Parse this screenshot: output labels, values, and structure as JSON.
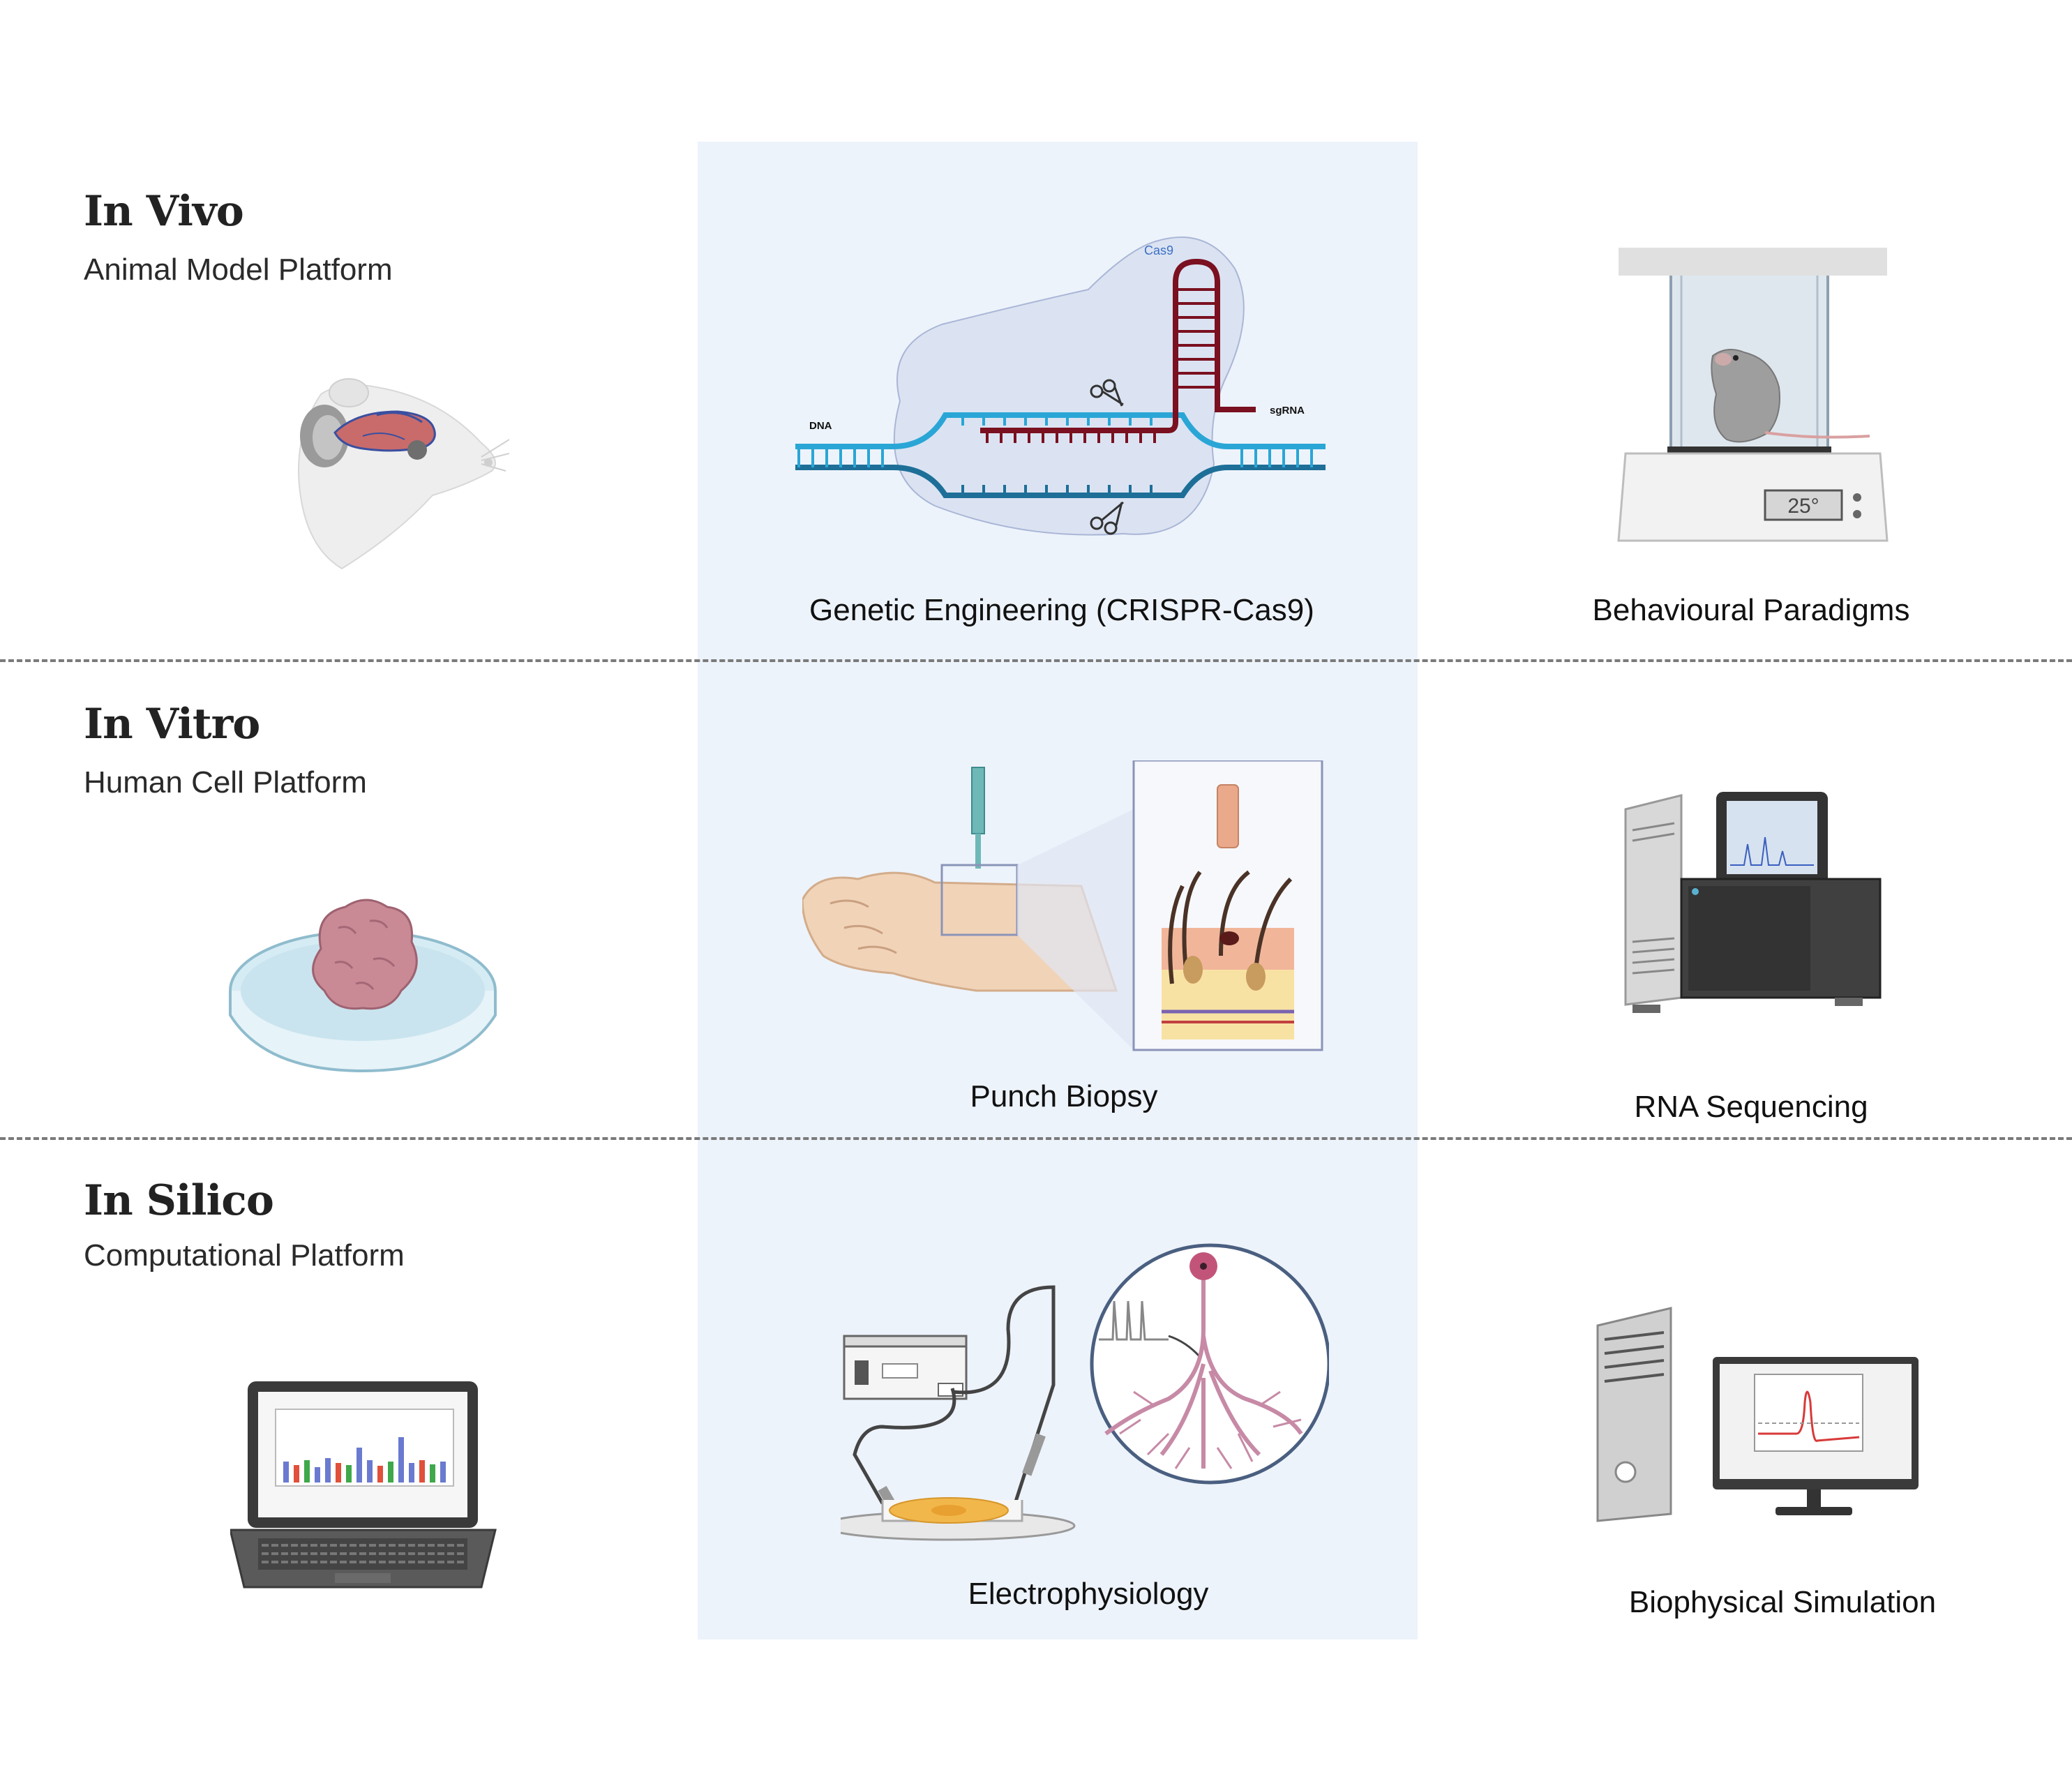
{
  "rows": [
    {
      "title": "In Vivo",
      "subtitle": "Animal Model Platform"
    },
    {
      "title": "In Vitro",
      "subtitle": "Human Cell Platform"
    },
    {
      "title": "In Silico",
      "subtitle": "Computational Platform"
    }
  ],
  "captions": {
    "crispr": "Genetic Engineering (CRISPR-Cas9)",
    "behaviour": "Behavioural Paradigms",
    "biopsy": "Punch Biopsy",
    "rna": "RNA Sequencing",
    "ephys": "Electrophysiology",
    "simulation": "Biophysical Simulation"
  },
  "crispr_labels": {
    "cas9": "Cas9",
    "dna": "DNA",
    "sgrna": "sgRNA"
  },
  "chamber_display": "25°",
  "colors": {
    "band": "#edf3fb",
    "dna": "#2aa6d6",
    "rna": "#7a1020",
    "divider": "#7a7a7a"
  }
}
